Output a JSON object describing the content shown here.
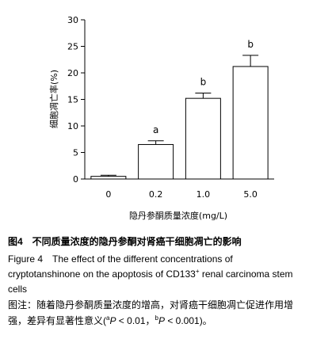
{
  "chart_data": {
    "type": "bar",
    "x_label": "隐丹参酮质量浓度(mg/L)",
    "y_label": "细胞凋亡率(%)",
    "categories": [
      "0",
      "0.2",
      "1.0",
      "5.0"
    ],
    "values": [
      0.5,
      6.5,
      15.2,
      21.2
    ],
    "errors": [
      0.2,
      0.7,
      1.0,
      2.1
    ],
    "significance": [
      null,
      "a",
      "b",
      "b"
    ],
    "color": "#ffffff",
    "ylim": [
      0,
      30
    ],
    "yticks": [
      0,
      5,
      10,
      15,
      20,
      25,
      30
    ]
  },
  "caption": {
    "cn_title": "图4　不同质量浓度的隐丹参酮对肾癌干细胞凋亡的影响",
    "en_line1": "Figure 4　The effect of the different concentrations of",
    "en_line2_a": "cryptotanshinone on the apoptosis of CD133",
    "en_line2_sup": "+",
    "en_line2_b": " renal carcinoma stem",
    "en_line3": "cells",
    "note_line1": "图注：随着隐丹参酮质量浓度的增高，对肾癌干细胞凋亡促进作用增",
    "note_line2_a": "强，差异有显著性意义(",
    "note_sup_a": "a",
    "note_p1": "P",
    "note_line2_b": " < 0.01，",
    "note_sup_b": "b",
    "note_p2": "P",
    "note_line2_c": " < 0.001)。"
  }
}
